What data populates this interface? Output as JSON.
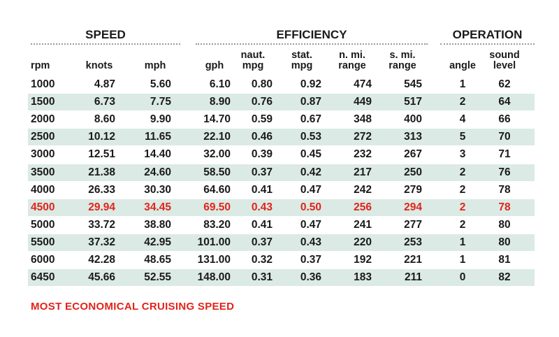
{
  "groups": [
    "SPEED",
    "EFFICIENCY",
    "OPERATION"
  ],
  "columns": [
    [
      "rpm"
    ],
    [
      "knots"
    ],
    [
      "mph"
    ],
    [
      "gph"
    ],
    [
      "naut.",
      "mpg"
    ],
    [
      "stat.",
      "mpg"
    ],
    [
      "n. mi.",
      "range"
    ],
    [
      "s. mi.",
      "range"
    ],
    [
      "angle"
    ],
    [
      "sound",
      "level"
    ]
  ],
  "rows": [
    [
      "1000",
      "4.87",
      "5.60",
      "6.10",
      "0.80",
      "0.92",
      "474",
      "545",
      "1",
      "62"
    ],
    [
      "1500",
      "6.73",
      "7.75",
      "8.90",
      "0.76",
      "0.87",
      "449",
      "517",
      "2",
      "64"
    ],
    [
      "2000",
      "8.60",
      "9.90",
      "14.70",
      "0.59",
      "0.67",
      "348",
      "400",
      "4",
      "66"
    ],
    [
      "2500",
      "10.12",
      "11.65",
      "22.10",
      "0.46",
      "0.53",
      "272",
      "313",
      "5",
      "70"
    ],
    [
      "3000",
      "12.51",
      "14.40",
      "32.00",
      "0.39",
      "0.45",
      "232",
      "267",
      "3",
      "71"
    ],
    [
      "3500",
      "21.38",
      "24.60",
      "58.50",
      "0.37",
      "0.42",
      "217",
      "250",
      "2",
      "76"
    ],
    [
      "4000",
      "26.33",
      "30.30",
      "64.60",
      "0.41",
      "0.47",
      "242",
      "279",
      "2",
      "78"
    ],
    [
      "4500",
      "29.94",
      "34.45",
      "69.50",
      "0.43",
      "0.50",
      "256",
      "294",
      "2",
      "78"
    ],
    [
      "5000",
      "33.72",
      "38.80",
      "83.20",
      "0.41",
      "0.47",
      "241",
      "277",
      "2",
      "80"
    ],
    [
      "5500",
      "37.32",
      "42.95",
      "101.00",
      "0.37",
      "0.43",
      "220",
      "253",
      "1",
      "80"
    ],
    [
      "6000",
      "42.28",
      "48.65",
      "131.00",
      "0.32",
      "0.37",
      "192",
      "221",
      "1",
      "81"
    ],
    [
      "6450",
      "45.66",
      "52.55",
      "148.00",
      "0.31",
      "0.36",
      "183",
      "211",
      "0",
      "82"
    ]
  ],
  "footnote": "MOST ECONOMICAL CRUISING SPEED"
}
